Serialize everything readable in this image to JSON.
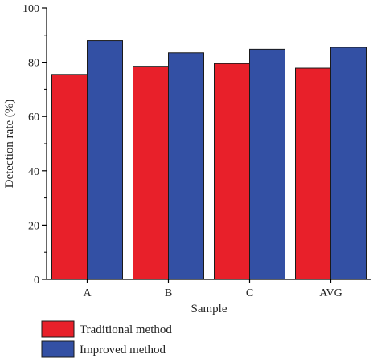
{
  "chart_data": {
    "type": "bar",
    "title": "",
    "xlabel": "Sample",
    "ylabel": "Detection rate (%)",
    "ylim": [
      0,
      100
    ],
    "yticks": [
      0,
      20,
      40,
      60,
      80,
      100
    ],
    "categories": [
      "A",
      "B",
      "C",
      "AVG"
    ],
    "series": [
      {
        "name": "Traditional method",
        "color": "#e8202a",
        "values": [
          75.5,
          78.5,
          79.5,
          77.8
        ]
      },
      {
        "name": "Improved method",
        "color": "#3350a4",
        "values": [
          88,
          83.5,
          84.8,
          85.5
        ]
      }
    ],
    "grid": false,
    "legend_position": "bottom-left"
  }
}
